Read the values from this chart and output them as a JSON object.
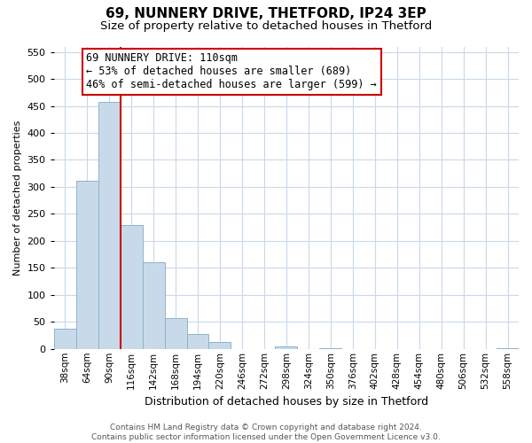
{
  "title": "69, NUNNERY DRIVE, THETFORD, IP24 3EP",
  "subtitle": "Size of property relative to detached houses in Thetford",
  "xlabel": "Distribution of detached houses by size in Thetford",
  "ylabel": "Number of detached properties",
  "bar_color": "#c8daea",
  "bar_edge_color": "#8ab4cc",
  "background_color": "#ffffff",
  "grid_color": "#c8d8ec",
  "annotation_box_edge": "#cc0000",
  "annotation_line_color": "#cc0000",
  "annotation_line1": "69 NUNNERY DRIVE: 110sqm",
  "annotation_line2": "← 53% of detached houses are smaller (689)",
  "annotation_line3": "46% of semi-detached houses are larger (599) →",
  "property_line_x": 3,
  "categories": [
    "38sqm",
    "64sqm",
    "90sqm",
    "116sqm",
    "142sqm",
    "168sqm",
    "194sqm",
    "220sqm",
    "246sqm",
    "272sqm",
    "298sqm",
    "324sqm",
    "350sqm",
    "376sqm",
    "402sqm",
    "428sqm",
    "454sqm",
    "480sqm",
    "506sqm",
    "532sqm",
    "558sqm"
  ],
  "values": [
    38,
    311,
    457,
    230,
    160,
    57,
    27,
    12,
    0,
    0,
    5,
    0,
    2,
    0,
    0,
    0,
    0,
    0,
    0,
    0,
    2
  ],
  "ylim": [
    0,
    560
  ],
  "yticks": [
    0,
    50,
    100,
    150,
    200,
    250,
    300,
    350,
    400,
    450,
    500,
    550
  ],
  "footer_line1": "Contains HM Land Registry data © Crown copyright and database right 2024.",
  "footer_line2": "Contains public sector information licensed under the Open Government Licence v3.0.",
  "title_fontsize": 11,
  "subtitle_fontsize": 9.5,
  "ylabel_fontsize": 8,
  "xlabel_fontsize": 9,
  "annot_fontsize": 8.5,
  "tick_fontsize": 7.5,
  "ytick_fontsize": 8,
  "footer_fontsize": 6.5
}
